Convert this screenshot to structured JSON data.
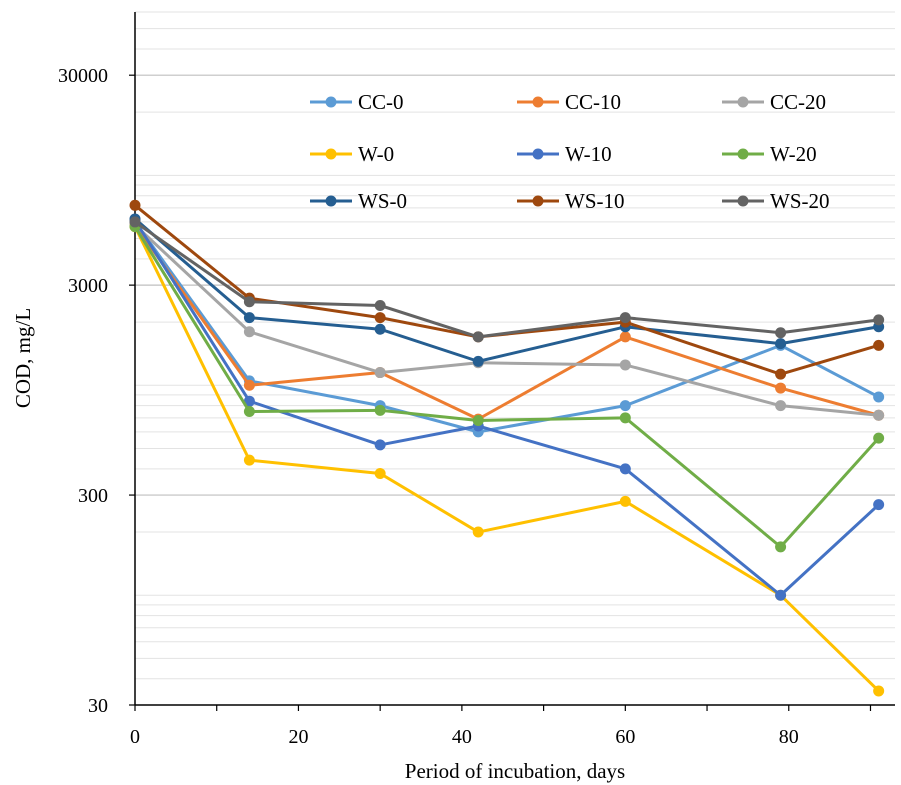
{
  "chart_data": {
    "type": "line",
    "title": "",
    "xlabel": "Period of incubation, days",
    "ylabel": "COD, mg/L",
    "y_scale": "log",
    "xlim": [
      0,
      93
    ],
    "ylim": [
      30,
      60000
    ],
    "x_ticks": [
      "0",
      "20",
      "40",
      "60",
      "80"
    ],
    "x_tick_values": [
      0,
      20,
      40,
      60,
      80
    ],
    "y_ticks": [
      "30",
      "300",
      "3000",
      "30000"
    ],
    "y_tick_values": [
      30,
      300,
      3000,
      30000
    ],
    "grid": "horizontal major and minor",
    "legend_position": "top-right, inside plot, 3 columns",
    "x": [
      0,
      14,
      30,
      42,
      60,
      79,
      91
    ],
    "series": [
      {
        "name": "CC-0",
        "color": "#5B9BD5",
        "values": [
          6000,
          1050,
          800,
          600,
          800,
          1550,
          880
        ]
      },
      {
        "name": "CC-10",
        "color": "#ED7D31",
        "values": [
          5800,
          1000,
          1150,
          690,
          1700,
          970,
          720
        ]
      },
      {
        "name": "CC-20",
        "color": "#A5A5A5",
        "values": [
          5800,
          1800,
          1150,
          1280,
          1250,
          800,
          720
        ]
      },
      {
        "name": "W-0",
        "color": "#FFC000",
        "values": [
          5700,
          440,
          380,
          200,
          280,
          100,
          35
        ]
      },
      {
        "name": "W-10",
        "color": "#4472C4",
        "values": [
          6100,
          840,
          520,
          640,
          400,
          100,
          270
        ]
      },
      {
        "name": "W-20",
        "color": "#70AD47",
        "values": [
          5700,
          750,
          760,
          680,
          700,
          170,
          560
        ]
      },
      {
        "name": "WS-0",
        "color": "#255E91",
        "values": [
          6200,
          2100,
          1850,
          1300,
          1900,
          1580,
          1900
        ]
      },
      {
        "name": "WS-10",
        "color": "#9E480E",
        "values": [
          7200,
          2600,
          2100,
          1700,
          2000,
          1130,
          1550
        ]
      },
      {
        "name": "WS-20",
        "color": "#636363",
        "values": [
          6000,
          2500,
          2400,
          1700,
          2100,
          1780,
          2050
        ]
      }
    ]
  }
}
